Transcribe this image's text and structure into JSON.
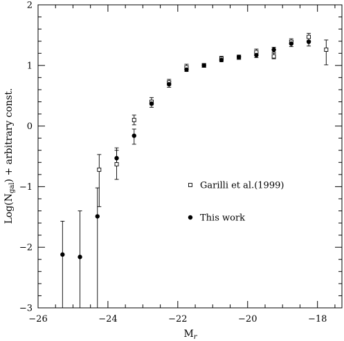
{
  "chart_data": {
    "type": "scatter",
    "title": "",
    "xlabel": "M",
    "xlabel_sub": "r",
    "ylabel_pre": "Log(N",
    "ylabel_sub": "gal",
    "ylabel_post": ")  + arbitrary const.",
    "xlim": [
      -26,
      -17.3
    ],
    "ylim": [
      -3,
      2
    ],
    "x_ticks": [
      -26,
      -24,
      -22,
      -20,
      -18
    ],
    "x_tick_labels": [
      "−26",
      "−24",
      "−22",
      "−20",
      "−18"
    ],
    "y_ticks": [
      -3,
      -2,
      -1,
      0,
      1,
      2
    ],
    "y_tick_labels": [
      "−3",
      "−2",
      "−1",
      "0",
      "1",
      "2"
    ],
    "grid": false,
    "legend_position": "right-middle",
    "series": [
      {
        "name": "Garilli et al.(1999)",
        "marker": "open-square",
        "points": [
          {
            "x": -24.25,
            "y": -0.72,
            "lo": -1.33,
            "hi": -0.47
          },
          {
            "x": -23.75,
            "y": -0.63,
            "lo": -0.88,
            "hi": -0.4
          },
          {
            "x": -23.25,
            "y": 0.1,
            "lo": 0.02,
            "hi": 0.18
          },
          {
            "x": -22.75,
            "y": 0.4,
            "lo": 0.35,
            "hi": 0.47
          },
          {
            "x": -22.25,
            "y": 0.72,
            "lo": 0.67,
            "hi": 0.77
          },
          {
            "x": -21.75,
            "y": 0.97,
            "lo": 0.93,
            "hi": 1.02
          },
          {
            "x": -21.25,
            "y": 1.0,
            "lo": 0.97,
            "hi": 1.03
          },
          {
            "x": -20.75,
            "y": 1.11,
            "lo": 1.08,
            "hi": 1.15
          },
          {
            "x": -20.25,
            "y": 1.13,
            "lo": 1.1,
            "hi": 1.17
          },
          {
            "x": -19.75,
            "y": 1.22,
            "lo": 1.17,
            "hi": 1.27
          },
          {
            "x": -19.25,
            "y": 1.15,
            "lo": 1.11,
            "hi": 1.2
          },
          {
            "x": -18.75,
            "y": 1.39,
            "lo": 1.35,
            "hi": 1.44
          },
          {
            "x": -18.25,
            "y": 1.47,
            "lo": 1.41,
            "hi": 1.53
          },
          {
            "x": -17.75,
            "y": 1.26,
            "lo": 1.01,
            "hi": 1.42
          }
        ]
      },
      {
        "name": "This work",
        "marker": "filled-circle",
        "points": [
          {
            "x": -25.3,
            "y": -2.12,
            "lo": -3.0,
            "hi": -1.57
          },
          {
            "x": -24.8,
            "y": -2.16,
            "lo": -3.0,
            "hi": -1.4
          },
          {
            "x": -24.3,
            "y": -1.49,
            "lo": -3.0,
            "hi": -1.02
          },
          {
            "x": -23.75,
            "y": -0.53,
            "lo": -0.65,
            "hi": -0.36
          },
          {
            "x": -23.25,
            "y": -0.16,
            "lo": -0.3,
            "hi": -0.05
          },
          {
            "x": -22.75,
            "y": 0.37,
            "lo": 0.31,
            "hi": 0.42
          },
          {
            "x": -22.25,
            "y": 0.69,
            "lo": 0.64,
            "hi": 0.74
          },
          {
            "x": -21.75,
            "y": 0.93,
            "lo": 0.9,
            "hi": 0.96
          },
          {
            "x": -21.25,
            "y": 1.0,
            "lo": 0.97,
            "hi": 1.03
          },
          {
            "x": -20.75,
            "y": 1.09,
            "lo": 1.06,
            "hi": 1.12
          },
          {
            "x": -20.25,
            "y": 1.14,
            "lo": 1.11,
            "hi": 1.17
          },
          {
            "x": -19.75,
            "y": 1.17,
            "lo": 1.13,
            "hi": 1.21
          },
          {
            "x": -19.25,
            "y": 1.26,
            "lo": 1.22,
            "hi": 1.3
          },
          {
            "x": -18.75,
            "y": 1.36,
            "lo": 1.31,
            "hi": 1.41
          },
          {
            "x": -18.25,
            "y": 1.39,
            "lo": 1.32,
            "hi": 1.46
          }
        ]
      }
    ]
  }
}
